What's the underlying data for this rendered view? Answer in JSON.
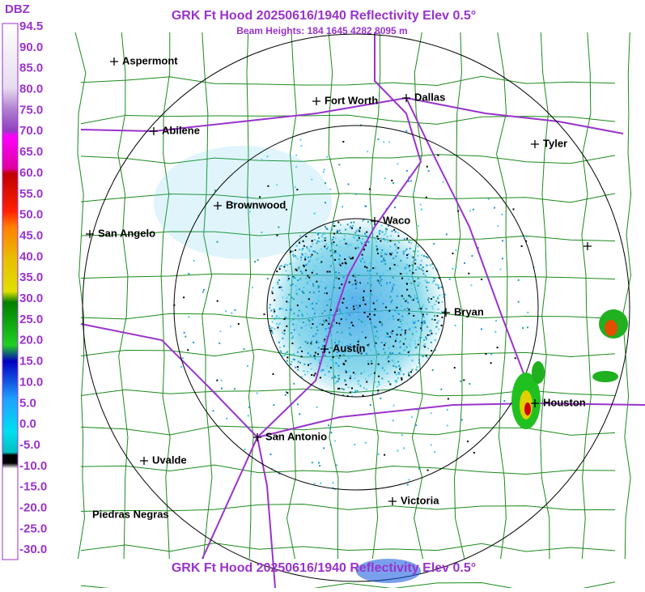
{
  "title": "GRK Ft Hood 20250616/1940 Reflectivity Elev 0.5°",
  "subtitle": "Beam Heights: 184 1645 4282 8095 m",
  "footer_title": "GRK Ft Hood 20250616/1940 Reflectivity Elev 0.5°",
  "legend": {
    "unit": "DBZ",
    "labels": [
      "94.5",
      "90.0",
      "85.0",
      "80.0",
      "75.0",
      "70.0",
      "65.0",
      "60.0",
      "55.0",
      "50.0",
      "45.0",
      "40.0",
      "35.0",
      "30.0",
      "25.0",
      "20.0",
      "15.0",
      "10.0",
      "5.0",
      "0.0",
      "-5.0",
      "-10.0",
      "-15.0",
      "-20.0",
      "-25.0",
      "-30.0"
    ]
  },
  "cities": [
    {
      "label": "Aspermont"
    },
    {
      "label": "Fort Worth"
    },
    {
      "label": "Dallas"
    },
    {
      "label": "Abilene"
    },
    {
      "label": "Tyler"
    },
    {
      "label": "Brownwood"
    },
    {
      "label": "Waco"
    },
    {
      "label": "San Angelo"
    },
    {
      "label": "Bryan"
    },
    {
      "label": "Austin"
    },
    {
      "label": "Houston"
    },
    {
      "label": "San Antonio"
    },
    {
      "label": "Uvalde"
    },
    {
      "label": "Victoria"
    },
    {
      "label": "Piedras Negras"
    }
  ]
}
